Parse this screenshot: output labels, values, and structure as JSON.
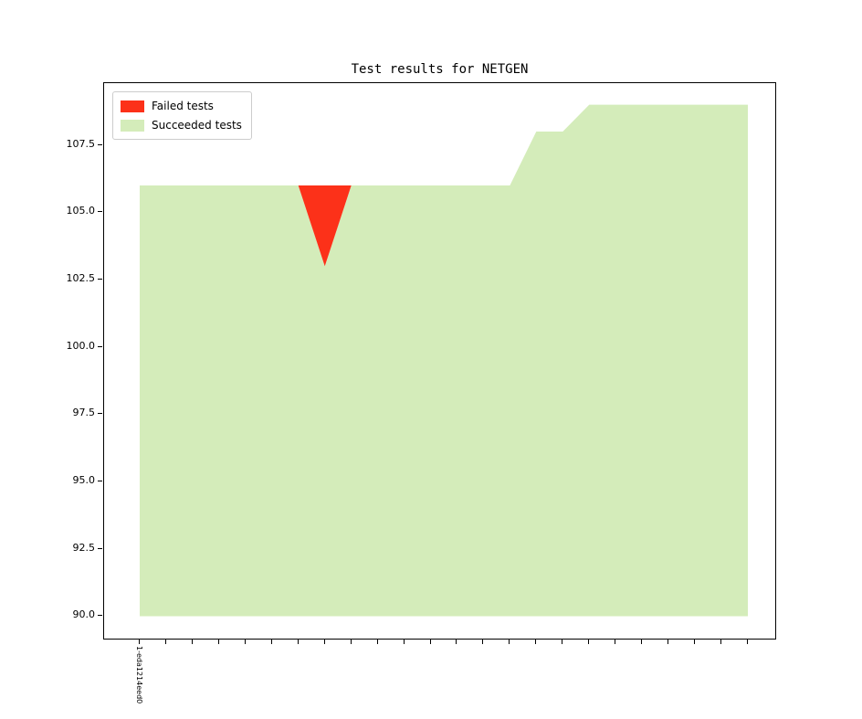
{
  "figure": {
    "title": "Test results for NETGEN"
  },
  "legend": {
    "items": [
      {
        "label": "Failed tests",
        "color": "#fc3119"
      },
      {
        "label": "Succeeded tests",
        "color": "#d4ecba"
      }
    ]
  },
  "chart_data": {
    "type": "area",
    "stacked": true,
    "title": "Test results for NETGEN",
    "legend_position": "upper left",
    "grid": false,
    "x_points": 24,
    "x_first_tick_label": "1-eda1214eed0",
    "baseline": 90,
    "ylim": [
      89.1,
      109.8
    ],
    "yticks": {
      "values": [
        107.5,
        105.0,
        102.5,
        100.0,
        97.5,
        95.0,
        92.5,
        90.0
      ],
      "labels": [
        "107.5",
        "105.0",
        "102.5",
        "100.0",
        "97.5",
        "95.0",
        "92.5",
        "90.0"
      ]
    },
    "series": [
      {
        "name": "Failed tests",
        "color": "#fc3119",
        "values": [
          0,
          0,
          0,
          0,
          0,
          0,
          0,
          3,
          0,
          0,
          0,
          0,
          0,
          0,
          0,
          0,
          0,
          0,
          0,
          0,
          0,
          0,
          0,
          0
        ]
      },
      {
        "name": "Succeeded tests",
        "color": "#d4ecba",
        "values": [
          106,
          106,
          106,
          106,
          106,
          106,
          106,
          103,
          106,
          106,
          106,
          106,
          106,
          106,
          106,
          108,
          108,
          109,
          109,
          109,
          109,
          109,
          109,
          109
        ]
      }
    ]
  }
}
